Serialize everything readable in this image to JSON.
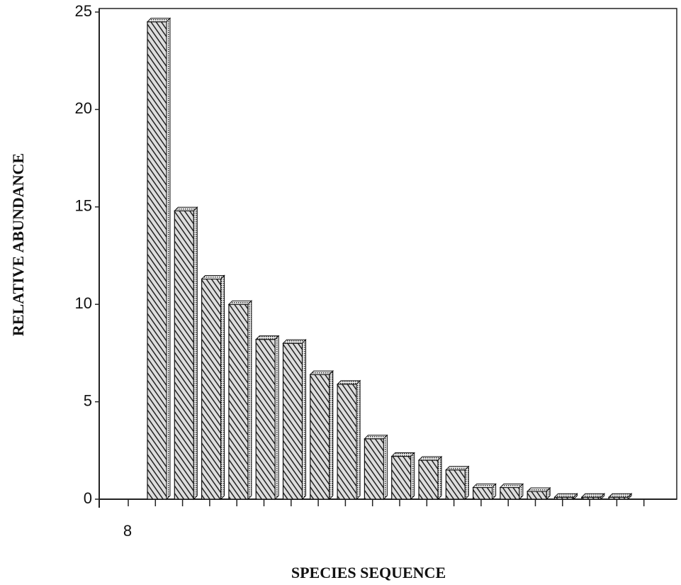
{
  "chart_data": {
    "type": "bar",
    "xlabel": "SPECIES SEQUENCE",
    "ylabel": "RELATIVE  ABUNDANCE",
    "annotation": "8",
    "categories": [
      null,
      null,
      null,
      null,
      null,
      null,
      null,
      null,
      null,
      null,
      null,
      null,
      null,
      null,
      null,
      null,
      null,
      null
    ],
    "values": [
      24.5,
      14.8,
      11.3,
      10.0,
      8.2,
      8.0,
      6.4,
      5.9,
      3.1,
      2.2,
      2.0,
      1.5,
      0.6,
      0.6,
      0.4,
      0.1,
      0.1,
      0.1
    ],
    "color": "#555555",
    "ylim": [
      0,
      25
    ],
    "yticks": [
      0,
      5,
      10,
      15,
      20,
      25
    ]
  }
}
